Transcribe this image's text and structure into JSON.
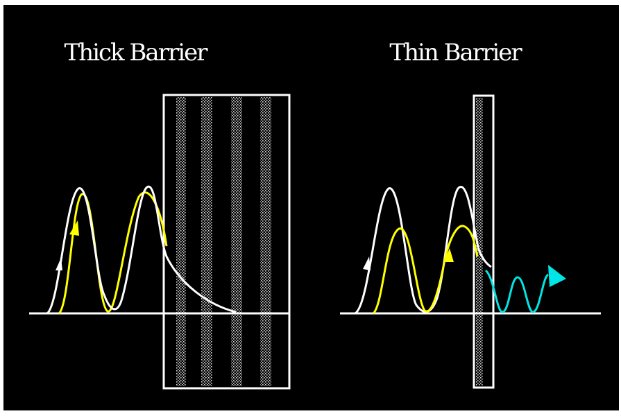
{
  "left_panel": {
    "title": "Thick Barrier"
  },
  "right_panel": {
    "title": "Thin Barrier"
  },
  "colors": {
    "background": "#000000",
    "baseline": "#ffffff",
    "incident_wave": "#ffffff",
    "reflected_wave": "#ffff00",
    "transmitted_wave": "#00e5e5",
    "barrier_outline": "#ffffff"
  }
}
